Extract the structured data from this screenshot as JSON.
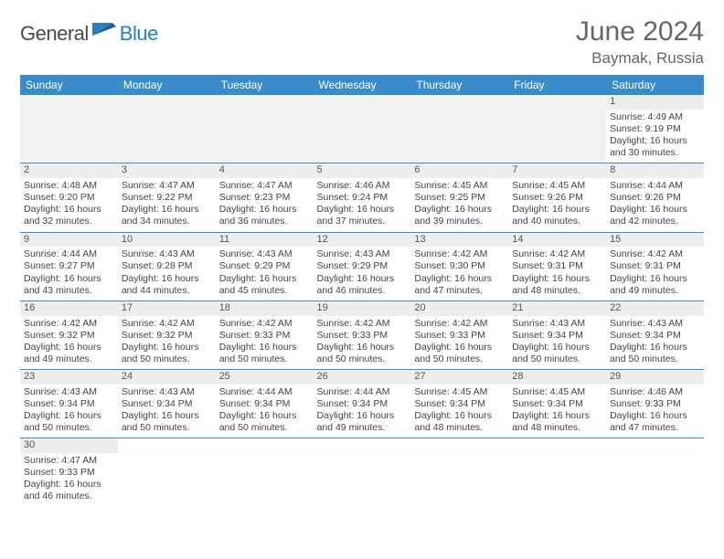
{
  "logo": {
    "text_a": "General",
    "text_b": "Blue"
  },
  "title": "June 2024",
  "location": "Baymak, Russia",
  "colors": {
    "header_bg": "#3a8bc9",
    "header_text": "#ffffff",
    "rule": "#3a8bc9",
    "daynum_bg": "#eeeeee",
    "logo_gray": "#4a4a4a",
    "logo_blue": "#2a7fbf"
  },
  "weekdays": [
    "Sunday",
    "Monday",
    "Tuesday",
    "Wednesday",
    "Thursday",
    "Friday",
    "Saturday"
  ],
  "lead_blanks": 6,
  "days": [
    {
      "n": 1,
      "sunrise": "4:49 AM",
      "sunset": "9:19 PM",
      "daylight": "16 hours and 30 minutes."
    },
    {
      "n": 2,
      "sunrise": "4:48 AM",
      "sunset": "9:20 PM",
      "daylight": "16 hours and 32 minutes."
    },
    {
      "n": 3,
      "sunrise": "4:47 AM",
      "sunset": "9:22 PM",
      "daylight": "16 hours and 34 minutes."
    },
    {
      "n": 4,
      "sunrise": "4:47 AM",
      "sunset": "9:23 PM",
      "daylight": "16 hours and 36 minutes."
    },
    {
      "n": 5,
      "sunrise": "4:46 AM",
      "sunset": "9:24 PM",
      "daylight": "16 hours and 37 minutes."
    },
    {
      "n": 6,
      "sunrise": "4:45 AM",
      "sunset": "9:25 PM",
      "daylight": "16 hours and 39 minutes."
    },
    {
      "n": 7,
      "sunrise": "4:45 AM",
      "sunset": "9:26 PM",
      "daylight": "16 hours and 40 minutes."
    },
    {
      "n": 8,
      "sunrise": "4:44 AM",
      "sunset": "9:26 PM",
      "daylight": "16 hours and 42 minutes."
    },
    {
      "n": 9,
      "sunrise": "4:44 AM",
      "sunset": "9:27 PM",
      "daylight": "16 hours and 43 minutes."
    },
    {
      "n": 10,
      "sunrise": "4:43 AM",
      "sunset": "9:28 PM",
      "daylight": "16 hours and 44 minutes."
    },
    {
      "n": 11,
      "sunrise": "4:43 AM",
      "sunset": "9:29 PM",
      "daylight": "16 hours and 45 minutes."
    },
    {
      "n": 12,
      "sunrise": "4:43 AM",
      "sunset": "9:29 PM",
      "daylight": "16 hours and 46 minutes."
    },
    {
      "n": 13,
      "sunrise": "4:42 AM",
      "sunset": "9:30 PM",
      "daylight": "16 hours and 47 minutes."
    },
    {
      "n": 14,
      "sunrise": "4:42 AM",
      "sunset": "9:31 PM",
      "daylight": "16 hours and 48 minutes."
    },
    {
      "n": 15,
      "sunrise": "4:42 AM",
      "sunset": "9:31 PM",
      "daylight": "16 hours and 49 minutes."
    },
    {
      "n": 16,
      "sunrise": "4:42 AM",
      "sunset": "9:32 PM",
      "daylight": "16 hours and 49 minutes."
    },
    {
      "n": 17,
      "sunrise": "4:42 AM",
      "sunset": "9:32 PM",
      "daylight": "16 hours and 50 minutes."
    },
    {
      "n": 18,
      "sunrise": "4:42 AM",
      "sunset": "9:33 PM",
      "daylight": "16 hours and 50 minutes."
    },
    {
      "n": 19,
      "sunrise": "4:42 AM",
      "sunset": "9:33 PM",
      "daylight": "16 hours and 50 minutes."
    },
    {
      "n": 20,
      "sunrise": "4:42 AM",
      "sunset": "9:33 PM",
      "daylight": "16 hours and 50 minutes."
    },
    {
      "n": 21,
      "sunrise": "4:43 AM",
      "sunset": "9:34 PM",
      "daylight": "16 hours and 50 minutes."
    },
    {
      "n": 22,
      "sunrise": "4:43 AM",
      "sunset": "9:34 PM",
      "daylight": "16 hours and 50 minutes."
    },
    {
      "n": 23,
      "sunrise": "4:43 AM",
      "sunset": "9:34 PM",
      "daylight": "16 hours and 50 minutes."
    },
    {
      "n": 24,
      "sunrise": "4:43 AM",
      "sunset": "9:34 PM",
      "daylight": "16 hours and 50 minutes."
    },
    {
      "n": 25,
      "sunrise": "4:44 AM",
      "sunset": "9:34 PM",
      "daylight": "16 hours and 50 minutes."
    },
    {
      "n": 26,
      "sunrise": "4:44 AM",
      "sunset": "9:34 PM",
      "daylight": "16 hours and 49 minutes."
    },
    {
      "n": 27,
      "sunrise": "4:45 AM",
      "sunset": "9:34 PM",
      "daylight": "16 hours and 48 minutes."
    },
    {
      "n": 28,
      "sunrise": "4:45 AM",
      "sunset": "9:34 PM",
      "daylight": "16 hours and 48 minutes."
    },
    {
      "n": 29,
      "sunrise": "4:46 AM",
      "sunset": "9:33 PM",
      "daylight": "16 hours and 47 minutes."
    },
    {
      "n": 30,
      "sunrise": "4:47 AM",
      "sunset": "9:33 PM",
      "daylight": "16 hours and 46 minutes."
    }
  ],
  "labels": {
    "sunrise": "Sunrise:",
    "sunset": "Sunset:",
    "daylight": "Daylight:"
  }
}
